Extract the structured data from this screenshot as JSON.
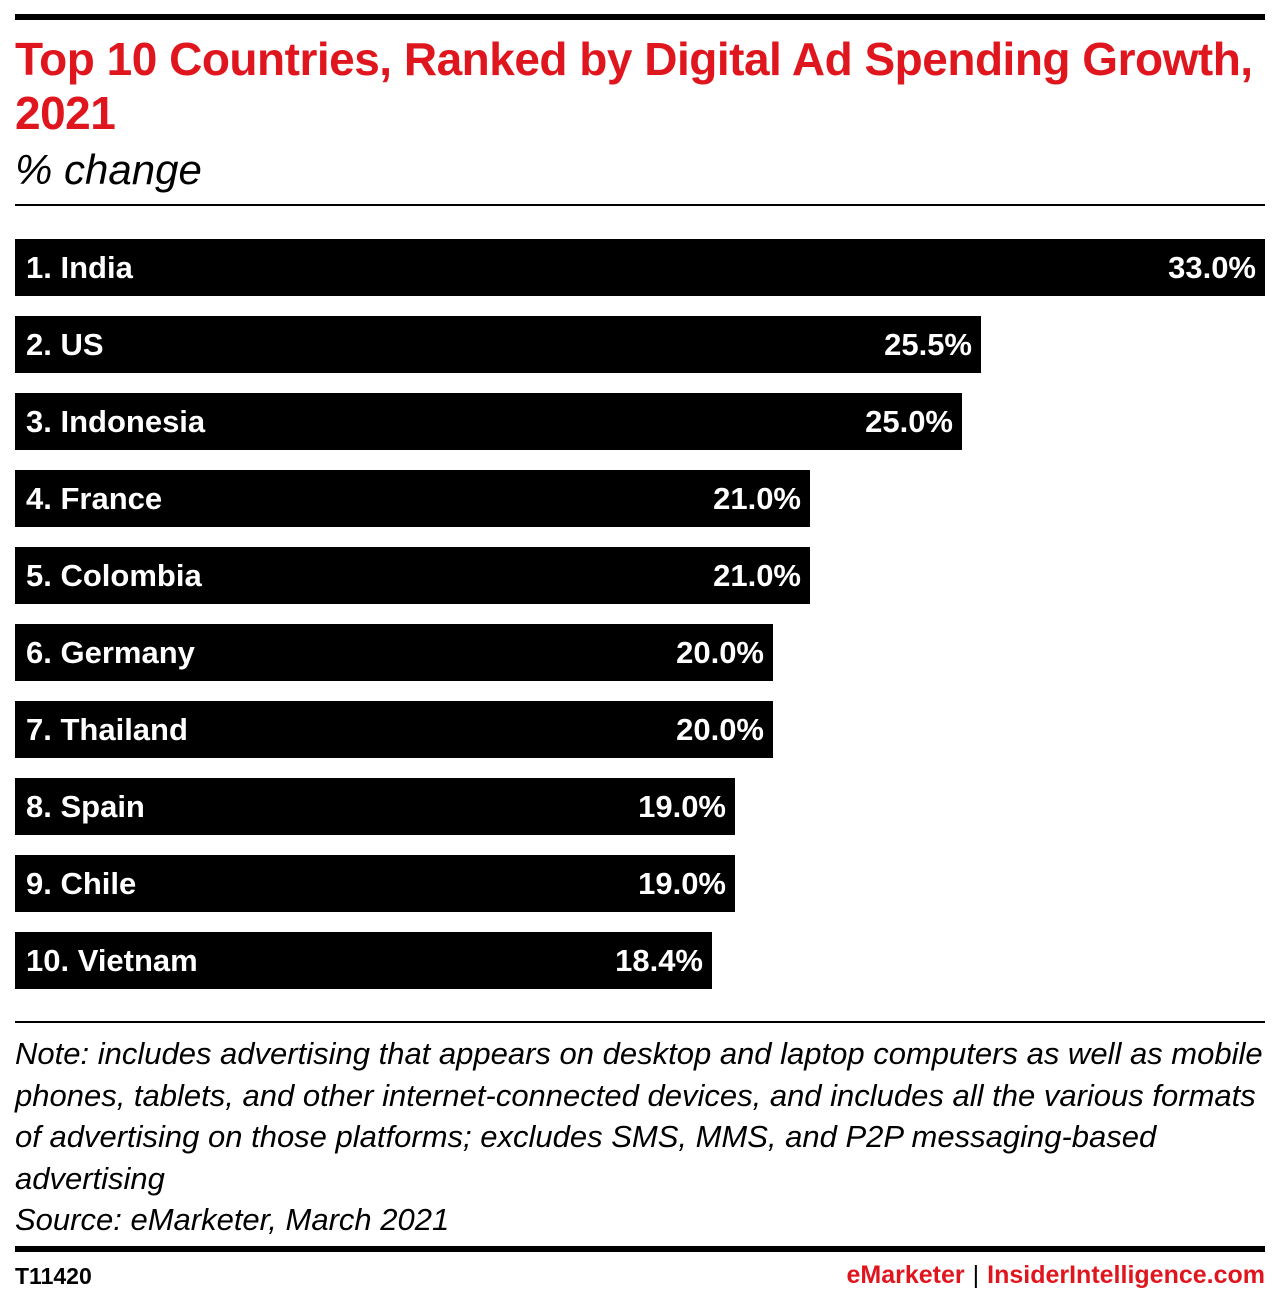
{
  "header": {
    "title": "Top 10 Countries, Ranked by Digital Ad Spending Growth, 2021",
    "subtitle": "% change"
  },
  "chart_data": {
    "type": "bar",
    "orientation": "horizontal",
    "title": "Top 10 Countries, Ranked by Digital Ad Spending Growth, 2021",
    "subtitle": "% change",
    "categories": [
      "1. India",
      "2. US",
      "3. Indonesia",
      "4. France",
      "5. Colombia",
      "6. Germany",
      "7. Thailand",
      "8. Spain",
      "9. Chile",
      "10. Vietnam"
    ],
    "values": [
      33.0,
      25.5,
      25.0,
      21.0,
      21.0,
      20.0,
      20.0,
      19.0,
      19.0,
      18.4
    ],
    "value_labels": [
      "33.0%",
      "25.5%",
      "25.0%",
      "21.0%",
      "21.0%",
      "20.0%",
      "20.0%",
      "19.0%",
      "19.0%",
      "18.4%"
    ],
    "xlim": [
      0,
      33.0
    ],
    "grid": false,
    "legend": "none",
    "bar_color": "#000000",
    "label_color": "#ffffff"
  },
  "footer": {
    "note": "Note: includes advertising that appears on desktop and laptop computers as well as mobile phones, tablets, and other internet-connected devices, and includes all the various formats of advertising on those platforms; excludes SMS, MMS, and P2P messaging-based advertising",
    "source": "Source: eMarketer, March 2021",
    "chart_id": "T11420",
    "brand_left": "eMarketer",
    "brand_separator": "|",
    "brand_right": "InsiderIntelligence.com"
  },
  "colors": {
    "accent": "#e0161f",
    "text": "#000000",
    "background": "#ffffff"
  }
}
